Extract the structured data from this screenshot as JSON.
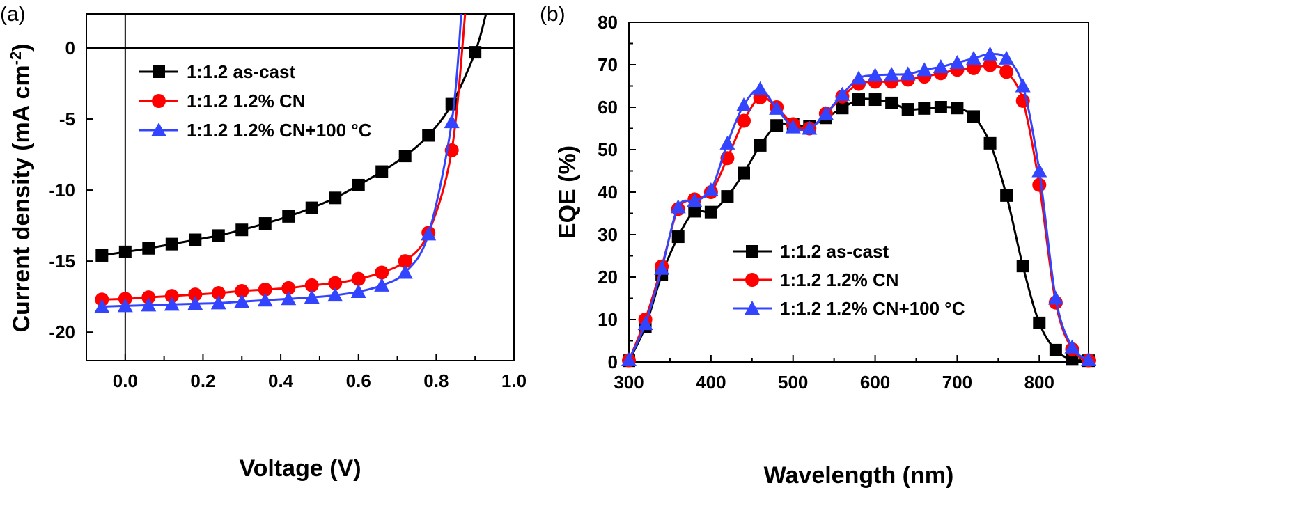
{
  "chart_data": [
    {
      "type": "line",
      "panel_label": "(a)",
      "xlabel": "Voltage (V)",
      "ylabel": "Current density (mA cm",
      "ylabel_sup": "-2",
      "ylabel_end": ")",
      "xlim": [
        -0.1,
        1.0
      ],
      "ylim": [
        -22,
        2.4
      ],
      "xticks": [
        0.0,
        0.2,
        0.4,
        0.6,
        0.8,
        1.0
      ],
      "xtick_labels": [
        "0.0",
        "0.2",
        "0.4",
        "0.6",
        "0.8",
        "1.0"
      ],
      "yticks": [
        0,
        -5,
        -10,
        -15,
        -20
      ],
      "ytick_labels": [
        "0",
        "-5",
        "-10",
        "-15",
        "-20"
      ],
      "reference_lines": {
        "y0": true,
        "x0": true
      },
      "grid": false,
      "legend_position": "top-left",
      "series": [
        {
          "name": "1:1.2 as-cast",
          "color": "#000000",
          "marker": "square",
          "x": [
            -0.06,
            0.0,
            0.06,
            0.12,
            0.18,
            0.24,
            0.3,
            0.36,
            0.42,
            0.48,
            0.54,
            0.6,
            0.66,
            0.72,
            0.78,
            0.84,
            0.9
          ],
          "y": [
            -14.6,
            -14.35,
            -14.1,
            -13.8,
            -13.5,
            -13.2,
            -12.8,
            -12.35,
            -11.85,
            -11.25,
            -10.55,
            -9.65,
            -8.7,
            -7.6,
            -6.15,
            -3.95,
            -0.3
          ]
        },
        {
          "name": "1:1.2 1.2% CN",
          "color": "#ff0000",
          "marker": "circle",
          "x": [
            -0.06,
            0.0,
            0.06,
            0.12,
            0.18,
            0.24,
            0.3,
            0.36,
            0.42,
            0.48,
            0.54,
            0.6,
            0.66,
            0.72,
            0.78,
            0.84
          ],
          "y": [
            -17.7,
            -17.65,
            -17.55,
            -17.45,
            -17.35,
            -17.25,
            -17.1,
            -17.0,
            -16.9,
            -16.7,
            -16.55,
            -16.25,
            -15.8,
            -15.0,
            -13.0,
            -7.2
          ]
        },
        {
          "name": "1:1.2 1.2% CN+100 °C",
          "color": "#3344ff",
          "marker": "triangle",
          "x": [
            -0.06,
            0.0,
            0.06,
            0.12,
            0.18,
            0.24,
            0.3,
            0.36,
            0.42,
            0.48,
            0.54,
            0.6,
            0.66,
            0.72,
            0.78,
            0.84
          ],
          "y": [
            -18.2,
            -18.15,
            -18.1,
            -18.05,
            -18.0,
            -17.95,
            -17.85,
            -17.75,
            -17.65,
            -17.55,
            -17.4,
            -17.15,
            -16.7,
            -15.8,
            -13.1,
            -5.2
          ]
        }
      ]
    },
    {
      "type": "line",
      "panel_label": "(b)",
      "xlabel": "Wavelength (nm)",
      "ylabel": "EQE (%)",
      "xlim": [
        300,
        860
      ],
      "ylim": [
        0,
        80
      ],
      "xticks": [
        300,
        400,
        500,
        600,
        700,
        800
      ],
      "xtick_labels": [
        "300",
        "400",
        "500",
        "600",
        "700",
        "800"
      ],
      "yticks": [
        0,
        10,
        20,
        30,
        40,
        50,
        60,
        70,
        80
      ],
      "ytick_labels": [
        "0",
        "10",
        "20",
        "30",
        "40",
        "50",
        "60",
        "70",
        "80"
      ],
      "grid": false,
      "legend_position": "bottom-center",
      "series": [
        {
          "name": "1:1.2 as-cast",
          "color": "#000000",
          "marker": "square",
          "x": [
            300,
            320,
            340,
            360,
            380,
            400,
            420,
            440,
            460,
            480,
            500,
            520,
            540,
            560,
            580,
            600,
            620,
            640,
            660,
            680,
            700,
            720,
            740,
            760,
            780,
            800,
            820,
            840,
            860
          ],
          "y": [
            0.3,
            8.3,
            20.5,
            29.5,
            35.5,
            35.3,
            39.0,
            44.5,
            51.0,
            55.7,
            56.0,
            55.5,
            57.5,
            59.8,
            61.8,
            61.8,
            61.0,
            59.5,
            59.7,
            60.0,
            59.8,
            57.8,
            51.5,
            39.2,
            22.6,
            9.2,
            2.8,
            0.6,
            0.3
          ]
        },
        {
          "name": "1:1.2 1.2% CN",
          "color": "#ff0000",
          "marker": "circle",
          "x": [
            300,
            320,
            340,
            360,
            380,
            400,
            420,
            440,
            460,
            480,
            500,
            520,
            540,
            560,
            580,
            600,
            620,
            640,
            660,
            680,
            700,
            720,
            740,
            760,
            780,
            800,
            820,
            840,
            860
          ],
          "y": [
            0.4,
            10.0,
            22.5,
            36.0,
            38.3,
            40.0,
            48.0,
            56.8,
            62.3,
            60.0,
            56.0,
            55.0,
            58.5,
            62.5,
            65.5,
            66.0,
            66.0,
            66.5,
            67.2,
            68.0,
            68.8,
            69.2,
            69.9,
            68.3,
            61.5,
            41.7,
            14.0,
            3.0,
            0.4
          ]
        },
        {
          "name": "1:1.2 1.2% CN+100 °C",
          "color": "#3344ff",
          "marker": "triangle",
          "x": [
            300,
            320,
            340,
            360,
            380,
            400,
            420,
            440,
            460,
            480,
            500,
            520,
            540,
            560,
            580,
            600,
            620,
            640,
            660,
            680,
            700,
            720,
            740,
            760,
            780,
            800,
            820,
            840,
            860
          ],
          "y": [
            0.5,
            9.0,
            22.0,
            36.5,
            38.0,
            40.5,
            51.5,
            60.5,
            64.3,
            59.7,
            55.3,
            55.0,
            58.5,
            63.0,
            66.8,
            67.5,
            67.7,
            67.8,
            68.8,
            69.5,
            70.5,
            71.5,
            72.5,
            71.5,
            65.0,
            45.0,
            15.0,
            3.5,
            0.5
          ]
        }
      ]
    }
  ]
}
